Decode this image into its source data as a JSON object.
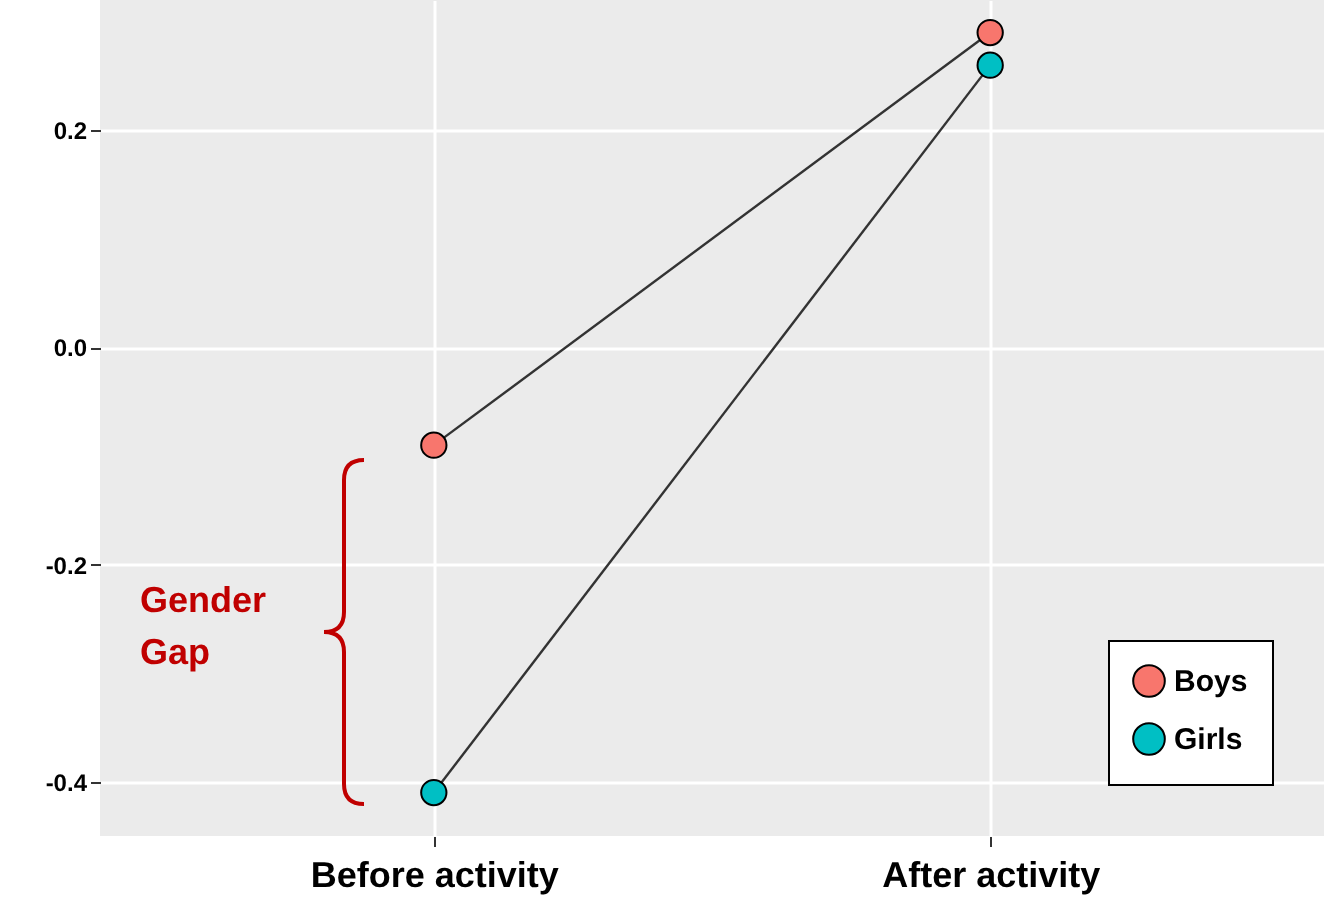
{
  "chart_data": {
    "type": "line",
    "categories": [
      "Before activity",
      "After activity"
    ],
    "series": [
      {
        "name": "Boys",
        "color": "#f8766d",
        "values": [
          -0.09,
          0.29
        ]
      },
      {
        "name": "Girls",
        "color": "#00bfc4",
        "values": [
          -0.41,
          0.26
        ]
      }
    ],
    "ylim": [
      -0.45,
      0.32
    ],
    "yticks": [
      {
        "value": -0.4,
        "label": "-0.4"
      },
      {
        "value": -0.2,
        "label": "-0.2"
      },
      {
        "value": 0,
        "label": "0.0"
      },
      {
        "value": 0.2,
        "label": "0.2"
      }
    ],
    "grid": true,
    "legend": "bottom right",
    "marker": "circle",
    "line_style": "solid",
    "annotations": [
      "Gender Gap"
    ]
  }
}
